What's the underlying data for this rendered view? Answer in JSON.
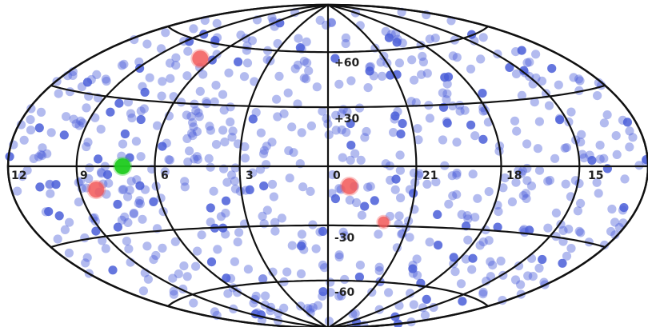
{
  "projection": "aitoff-hammer",
  "grid_color": "#111111",
  "background": "#ffffff",
  "ra_tick_labels": [
    "12",
    "9",
    "6",
    "3",
    "0",
    "21",
    "18",
    "15"
  ],
  "dec_tick_labels": [
    "+60",
    "+30",
    "-30",
    "-60"
  ],
  "marker_colors": {
    "background_source": "#4a5ed8",
    "red_source": "#f25a5a",
    "green_source": "#22cc22"
  },
  "highlighted_sources": [
    {
      "color_key": "red_source",
      "lon_deg": 100,
      "lat_deg": 52,
      "size": "large"
    },
    {
      "color_key": "red_source",
      "lon_deg": 125,
      "lat_deg": -10,
      "size": "large"
    },
    {
      "color_key": "red_source",
      "lon_deg": -11,
      "lat_deg": -10,
      "size": "large"
    },
    {
      "color_key": "red_source",
      "lon_deg": -31,
      "lat_deg": -28,
      "size": "small"
    },
    {
      "color_key": "green_source",
      "lon_deg": 108,
      "lat_deg": 0,
      "size": "large"
    }
  ]
}
